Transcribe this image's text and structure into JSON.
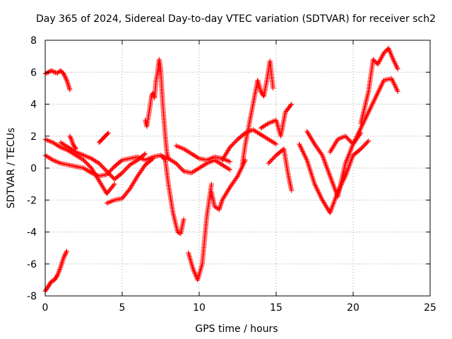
{
  "chart_data": {
    "type": "scatter",
    "title": "Day 365 of 2024, Sidereal Day-to-day VTEC variation (SDTVAR) for receiver sch2",
    "xlabel": "GPS time / hours",
    "ylabel": "SDTVAR / TECUs",
    "xlim": [
      0,
      25
    ],
    "ylim": [
      -8,
      8
    ],
    "x_ticks": [
      0,
      5,
      10,
      15,
      20,
      25
    ],
    "y_ticks": [
      -8,
      -6,
      -4,
      -2,
      0,
      2,
      4,
      6,
      8
    ],
    "grid": true,
    "legend": "none",
    "marker": "+",
    "color": "#ff0000",
    "series": [
      {
        "x": [
          0,
          0.2,
          0.4,
          0.6,
          0.8,
          1.0,
          1.2,
          1.4,
          1.6
        ],
        "values": [
          5.9,
          6.0,
          6.1,
          6.0,
          5.95,
          6.1,
          5.9,
          5.5,
          4.9
        ]
      },
      {
        "x": [
          0,
          0.2,
          0.4,
          0.6,
          0.8,
          1.0,
          1.2,
          1.4
        ],
        "values": [
          -7.7,
          -7.4,
          -7.1,
          -7.0,
          -6.7,
          -6.2,
          -5.6,
          -5.2
        ]
      },
      {
        "x": [
          0,
          0.5,
          1.0,
          1.5,
          2.0,
          2.5,
          3.0,
          3.5,
          4.0,
          4.5
        ],
        "values": [
          1.8,
          1.6,
          1.3,
          1.1,
          0.8,
          0.5,
          0.0,
          -0.8,
          -1.6,
          -1.0
        ]
      },
      {
        "x": [
          0,
          0.5,
          1.0,
          1.5,
          2.0,
          2.5,
          3.0,
          3.5,
          4.0,
          4.5,
          5.0,
          5.5,
          6.0,
          6.5,
          7.0,
          7.5,
          8.0,
          8.5,
          9.0,
          9.5,
          10.0,
          10.5,
          11.0,
          11.5,
          12.0
        ],
        "values": [
          0.8,
          0.5,
          0.3,
          0.2,
          0.1,
          0.0,
          -0.3,
          -0.5,
          -0.4,
          0.1,
          0.5,
          0.6,
          0.7,
          0.5,
          0.7,
          0.8,
          0.6,
          0.3,
          -0.2,
          -0.3,
          0.0,
          0.3,
          0.5,
          0.2,
          -0.1
        ]
      },
      {
        "x": [
          1.0,
          1.5,
          2.0,
          2.5,
          3.0,
          3.5,
          4.0,
          4.5,
          5.0,
          5.5,
          6.0,
          6.5
        ],
        "values": [
          1.6,
          1.3,
          1.0,
          0.8,
          0.6,
          0.3,
          -0.2,
          -0.7,
          -0.3,
          0.2,
          0.5,
          0.9
        ]
      },
      {
        "x": [
          1.6,
          1.7,
          1.8,
          2.0
        ],
        "values": [
          2.0,
          1.8,
          1.5,
          1.2
        ]
      },
      {
        "x": [
          3.5,
          3.7,
          3.9,
          4.1
        ],
        "values": [
          1.6,
          1.8,
          2.0,
          2.2
        ]
      },
      {
        "x": [
          4.0,
          4.5,
          5.0,
          5.5,
          6.0,
          6.5,
          7.0
        ],
        "values": [
          -2.2,
          -2.0,
          -1.9,
          -1.3,
          -0.5,
          0.2,
          0.6
        ]
      },
      {
        "x": [
          6.5,
          6.6,
          6.7,
          6.8,
          6.9,
          7.0,
          7.1,
          7.2,
          7.3,
          7.4,
          7.5,
          7.6,
          7.7,
          7.8,
          7.9,
          8.0
        ],
        "values": [
          3.0,
          2.6,
          3.2,
          3.8,
          4.5,
          4.7,
          4.4,
          5.5,
          6.0,
          6.8,
          6.2,
          4.5,
          3.2,
          2.0,
          1.0,
          0.6
        ]
      },
      {
        "x": [
          7.5,
          7.8,
          8.0,
          8.3,
          8.6,
          8.8,
          9.0
        ],
        "values": [
          0.8,
          0.5,
          -1.0,
          -2.8,
          -4.0,
          -4.1,
          -3.2
        ]
      },
      {
        "x": [
          8.5,
          9.0,
          9.5,
          10.0,
          10.5,
          11.0,
          11.5,
          12.0
        ],
        "values": [
          1.4,
          1.2,
          0.9,
          0.6,
          0.5,
          0.7,
          0.6,
          0.4
        ]
      },
      {
        "x": [
          9.3,
          9.6,
          9.9,
          10.2,
          10.5,
          10.8
        ],
        "values": [
          -5.3,
          -6.3,
          -7.0,
          -6.0,
          -3.0,
          -1.0
        ]
      },
      {
        "x": [
          10.8,
          11.0,
          11.3,
          11.5,
          12.0,
          12.5,
          13.0
        ],
        "values": [
          -1.5,
          -2.4,
          -2.6,
          -2.0,
          -1.2,
          -0.5,
          0.5
        ]
      },
      {
        "x": [
          11.5,
          12.0,
          12.5,
          13.0,
          13.5,
          14.0,
          14.5,
          15.0
        ],
        "values": [
          0.5,
          1.3,
          1.8,
          2.2,
          2.4,
          2.1,
          1.8,
          1.5
        ]
      },
      {
        "x": [
          12.8,
          13.0,
          13.3,
          13.6,
          13.8,
          14.0,
          14.2,
          14.4,
          14.6,
          14.8
        ],
        "values": [
          0.2,
          1.5,
          3.0,
          4.5,
          5.5,
          4.8,
          4.5,
          5.5,
          6.7,
          5.0
        ]
      },
      {
        "x": [
          14.0,
          14.5,
          15.0,
          15.3,
          15.6,
          16.0
        ],
        "values": [
          2.5,
          2.8,
          3.0,
          2.0,
          3.5,
          4.0
        ]
      },
      {
        "x": [
          14.5,
          15.0,
          15.5,
          15.8,
          16.0
        ],
        "values": [
          0.3,
          0.8,
          1.2,
          -0.5,
          -1.4
        ]
      },
      {
        "x": [
          16.5,
          17.0,
          17.5,
          18.0,
          18.5,
          19.0,
          19.5,
          20.0,
          20.5,
          21.0
        ],
        "values": [
          1.5,
          0.5,
          -1.0,
          -2.0,
          -2.8,
          -1.5,
          -0.5,
          0.8,
          1.2,
          1.7
        ]
      },
      {
        "x": [
          17.0,
          17.5,
          18.0,
          18.5,
          19.0,
          19.5,
          20.0,
          20.5
        ],
        "values": [
          2.3,
          1.5,
          0.8,
          -0.5,
          -1.8,
          0.3,
          1.5,
          2.2
        ]
      },
      {
        "x": [
          18.5,
          19.0,
          19.5,
          20.0,
          20.5,
          21.0,
          21.5,
          22.0,
          22.5,
          22.9
        ],
        "values": [
          1.0,
          1.8,
          2.0,
          1.5,
          2.5,
          3.5,
          4.5,
          5.5,
          5.6,
          4.8
        ]
      },
      {
        "x": [
          20.5,
          21.0,
          21.3,
          21.6,
          22.0,
          22.3,
          22.6,
          22.9
        ],
        "values": [
          2.8,
          4.8,
          6.8,
          6.5,
          7.2,
          7.5,
          6.8,
          6.2
        ]
      }
    ]
  }
}
